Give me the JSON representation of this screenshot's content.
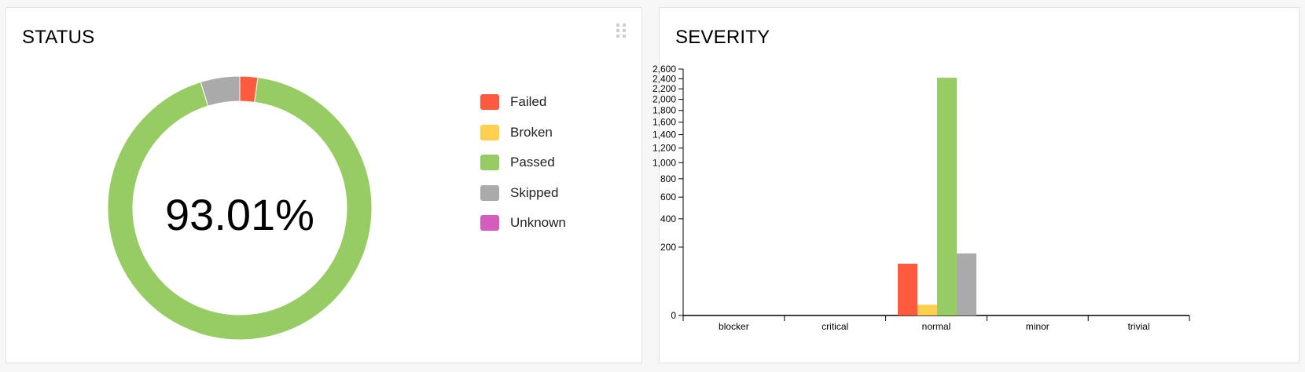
{
  "status_panel": {
    "title": "STATUS",
    "center_label": "93.01%",
    "legend": [
      {
        "label": "Failed",
        "color": "#fd5a3e"
      },
      {
        "label": "Broken",
        "color": "#ffd050"
      },
      {
        "label": "Passed",
        "color": "#97cc64"
      },
      {
        "label": "Skipped",
        "color": "#aaaaaa"
      },
      {
        "label": "Unknown",
        "color": "#d35ebe"
      }
    ]
  },
  "severity_panel": {
    "title": "SEVERITY"
  },
  "chart_data": [
    {
      "type": "pie",
      "categories": [
        "Failed",
        "Broken",
        "Passed",
        "Skipped",
        "Unknown"
      ],
      "values": [
        2.2,
        0,
        93.01,
        4.79,
        0
      ],
      "colors": [
        "#fd5a3e",
        "#ffd050",
        "#97cc64",
        "#aaaaaa",
        "#d35ebe"
      ],
      "center_text": "93.01%",
      "legend": "right"
    },
    {
      "type": "bar",
      "categories": [
        "blocker",
        "critical",
        "normal",
        "minor",
        "trivial"
      ],
      "series": [
        {
          "name": "Failed",
          "color": "#fd5a3e",
          "values": [
            0,
            0,
            115,
            0,
            0
          ]
        },
        {
          "name": "Broken",
          "color": "#ffd050",
          "values": [
            0,
            0,
            5,
            0,
            0
          ]
        },
        {
          "name": "Passed",
          "color": "#97cc64",
          "values": [
            0,
            0,
            2420,
            0,
            0
          ]
        },
        {
          "name": "Skipped",
          "color": "#aaaaaa",
          "values": [
            0,
            0,
            165,
            0,
            0
          ]
        },
        {
          "name": "Unknown",
          "color": "#d35ebe",
          "values": [
            0,
            0,
            0,
            0,
            0
          ]
        }
      ],
      "yscale": "sqrt",
      "ylim": [
        0,
        2600
      ],
      "yticks": [
        0,
        200,
        400,
        600,
        800,
        1000,
        1200,
        1400,
        1600,
        1800,
        2000,
        2200,
        2400,
        2600
      ],
      "ytick_labels": [
        "0",
        "200",
        "400",
        "600",
        "800",
        "1,000",
        "1,200",
        "1,400",
        "1,600",
        "1,800",
        "2,000",
        "2,200",
        "2,400",
        "2,600"
      ],
      "grid": false
    }
  ]
}
